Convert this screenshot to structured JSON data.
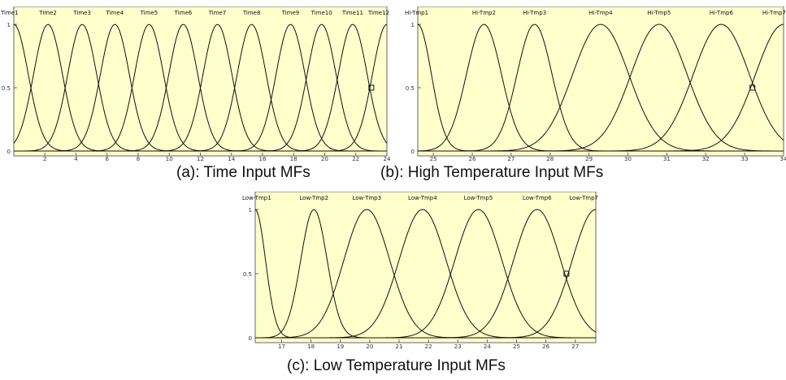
{
  "colors": {
    "plot_bg": "#ffffcc",
    "curve": "#111111",
    "frame": "#666666",
    "tick_text": "#333333"
  },
  "captions": {
    "a": "(a): Time Input MFs",
    "b": "(b): High Temperature Input MFs",
    "c": "(c): Low Temperature Input MFs"
  },
  "chart_data": [
    {
      "id": "time",
      "type": "line",
      "title": "",
      "xlabel": "",
      "ylabel": "",
      "xlim": [
        0,
        24
      ],
      "ylim": [
        0,
        1
      ],
      "xticks": [
        2,
        4,
        6,
        8,
        10,
        12,
        14,
        16,
        18,
        20,
        22,
        24
      ],
      "yticks": [
        0,
        0.5,
        1
      ],
      "grid": false,
      "series": [
        {
          "name": "Time1",
          "center": 0,
          "sigma": 0.93
        },
        {
          "name": "Time2",
          "center": 2.2,
          "sigma": 0.93
        },
        {
          "name": "Time3",
          "center": 4.4,
          "sigma": 0.93
        },
        {
          "name": "Time4",
          "center": 6.5,
          "sigma": 0.93
        },
        {
          "name": "Time5",
          "center": 8.7,
          "sigma": 0.93
        },
        {
          "name": "Time6",
          "center": 10.9,
          "sigma": 0.93
        },
        {
          "name": "Time7",
          "center": 13.1,
          "sigma": 0.93
        },
        {
          "name": "Time8",
          "center": 15.3,
          "sigma": 0.93
        },
        {
          "name": "Time9",
          "center": 17.8,
          "sigma": 0.93
        },
        {
          "name": "Time10",
          "center": 19.8,
          "sigma": 0.93
        },
        {
          "name": "Time11",
          "center": 21.8,
          "sigma": 0.93
        },
        {
          "name": "Time12",
          "center": 24,
          "sigma": 0.93
        }
      ],
      "marker": {
        "x": 23,
        "y": 0.5
      }
    },
    {
      "id": "hightemp",
      "type": "line",
      "title": "",
      "xlabel": "",
      "ylabel": "",
      "xlim": [
        24.6,
        34
      ],
      "ylim": [
        0,
        1
      ],
      "xticks": [
        25,
        26,
        27,
        28,
        29,
        30,
        31,
        32,
        33,
        34
      ],
      "yticks": [
        0,
        0.5,
        1
      ],
      "grid": false,
      "series": [
        {
          "name": "Hi-Tmp1",
          "center": 24.6,
          "sigma": 0.35
        },
        {
          "name": "Hi-Tmp2",
          "center": 26.3,
          "sigma": 0.45
        },
        {
          "name": "Hi-Tmp3",
          "center": 27.6,
          "sigma": 0.45
        },
        {
          "name": "Hi-Tmp4",
          "center": 29.3,
          "sigma": 0.72
        },
        {
          "name": "Hi-Tmp5",
          "center": 30.8,
          "sigma": 0.72
        },
        {
          "name": "Hi-Tmp6",
          "center": 32.4,
          "sigma": 0.72
        },
        {
          "name": "Hi-Tmp7",
          "center": 34,
          "sigma": 0.72
        }
      ],
      "marker": {
        "x": 33.2,
        "y": 0.5
      }
    },
    {
      "id": "lowtemp",
      "type": "line",
      "title": "",
      "xlabel": "",
      "ylabel": "",
      "xlim": [
        16.1,
        27.7
      ],
      "ylim": [
        0,
        1
      ],
      "xticks": [
        17,
        18,
        19,
        20,
        21,
        22,
        23,
        24,
        25,
        26,
        27
      ],
      "yticks": [
        0,
        0.5,
        1
      ],
      "grid": false,
      "series": [
        {
          "name": "Low-Tmp1",
          "center": 16.1,
          "sigma": 0.35
        },
        {
          "name": "Low-Tmp2",
          "center": 18.1,
          "sigma": 0.45
        },
        {
          "name": "Low-Tmp3",
          "center": 19.9,
          "sigma": 0.78
        },
        {
          "name": "Low-Tmp4",
          "center": 21.8,
          "sigma": 0.8
        },
        {
          "name": "Low-Tmp5",
          "center": 23.7,
          "sigma": 0.8
        },
        {
          "name": "Low-Tmp6",
          "center": 25.7,
          "sigma": 0.8
        },
        {
          "name": "Low-Tmp7",
          "center": 27.7,
          "sigma": 0.8
        }
      ],
      "marker": {
        "x": 26.7,
        "y": 0.5
      }
    }
  ]
}
